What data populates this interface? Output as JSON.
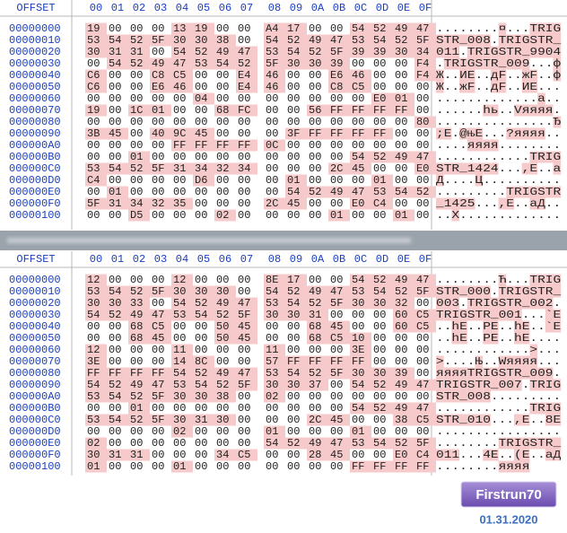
{
  "panels": [
    {
      "header": {
        "offset": "OFFSET",
        "columns": [
          "00",
          "01",
          "02",
          "03",
          "04",
          "05",
          "06",
          "07",
          "08",
          "09",
          "0A",
          "0B",
          "0C",
          "0D",
          "0E",
          "0F"
        ]
      },
      "rows": [
        {
          "offset": "00000000",
          "bytes": [
            "19",
            "00",
            "00",
            "00",
            "13",
            "19",
            "00",
            "00",
            "A4",
            "17",
            "00",
            "00",
            "54",
            "52",
            "49",
            "47"
          ],
          "ascii": "........¤...TRIG"
        },
        {
          "offset": "00000010",
          "bytes": [
            "53",
            "54",
            "52",
            "5F",
            "30",
            "30",
            "38",
            "00",
            "54",
            "52",
            "49",
            "47",
            "53",
            "54",
            "52",
            "5F"
          ],
          "ascii": "STR_008.TRIGSTR_"
        },
        {
          "offset": "00000020",
          "bytes": [
            "30",
            "31",
            "31",
            "00",
            "54",
            "52",
            "49",
            "47",
            "53",
            "54",
            "52",
            "5F",
            "39",
            "39",
            "30",
            "34"
          ],
          "ascii": "011.TRIGSTR_9904"
        },
        {
          "offset": "00000030",
          "bytes": [
            "00",
            "54",
            "52",
            "49",
            "47",
            "53",
            "54",
            "52",
            "5F",
            "30",
            "30",
            "39",
            "00",
            "00",
            "00",
            "F4"
          ],
          "ascii": ".TRIGSTR_009...ф"
        },
        {
          "offset": "00000040",
          "bytes": [
            "C6",
            "00",
            "00",
            "C8",
            "C5",
            "00",
            "00",
            "E4",
            "46",
            "00",
            "00",
            "E6",
            "46",
            "00",
            "00",
            "F4"
          ],
          "ascii": "Ж..ИЕ..дF..жF..ф"
        },
        {
          "offset": "00000050",
          "bytes": [
            "C6",
            "00",
            "00",
            "E6",
            "46",
            "00",
            "00",
            "E4",
            "46",
            "00",
            "00",
            "C8",
            "C5",
            "00",
            "00",
            "00"
          ],
          "ascii": "Ж..жF..дF..ИЕ..."
        },
        {
          "offset": "00000060",
          "bytes": [
            "00",
            "00",
            "00",
            "00",
            "00",
            "04",
            "00",
            "00",
            "00",
            "00",
            "00",
            "00",
            "00",
            "E0",
            "01",
            "00"
          ],
          "ascii": ".............а.."
        },
        {
          "offset": "00000070",
          "bytes": [
            "19",
            "00",
            "1C",
            "01",
            "00",
            "00",
            "68",
            "FC",
            "00",
            "00",
            "56",
            "FF",
            "FF",
            "FF",
            "FF",
            "00"
          ],
          "ascii": "......hь..Vяяяя."
        },
        {
          "offset": "00000080",
          "bytes": [
            "00",
            "00",
            "00",
            "00",
            "00",
            "00",
            "00",
            "00",
            "00",
            "00",
            "00",
            "00",
            "00",
            "00",
            "00",
            "80"
          ],
          "ascii": "...............Ђ"
        },
        {
          "offset": "00000090",
          "bytes": [
            "3B",
            "45",
            "00",
            "40",
            "9C",
            "45",
            "00",
            "00",
            "00",
            "3F",
            "FF",
            "FF",
            "FF",
            "FF",
            "00",
            "00"
          ],
          "ascii": ";E.@њE...?яяяя.."
        },
        {
          "offset": "000000A0",
          "bytes": [
            "00",
            "00",
            "00",
            "00",
            "FF",
            "FF",
            "FF",
            "FF",
            "0C",
            "00",
            "00",
            "00",
            "00",
            "00",
            "00",
            "00"
          ],
          "ascii": "....яяяя........"
        },
        {
          "offset": "000000B0",
          "bytes": [
            "00",
            "00",
            "01",
            "00",
            "00",
            "00",
            "00",
            "00",
            "00",
            "00",
            "00",
            "00",
            "54",
            "52",
            "49",
            "47"
          ],
          "ascii": "............TRIG"
        },
        {
          "offset": "000000C0",
          "bytes": [
            "53",
            "54",
            "52",
            "5F",
            "31",
            "34",
            "32",
            "34",
            "00",
            "00",
            "00",
            "2C",
            "45",
            "00",
            "00",
            "E0"
          ],
          "ascii": "STR_1424...,E..а"
        },
        {
          "offset": "000000D0",
          "bytes": [
            "C4",
            "00",
            "00",
            "00",
            "00",
            "D6",
            "00",
            "00",
            "00",
            "01",
            "00",
            "00",
            "00",
            "01",
            "00",
            "00"
          ],
          "ascii": "Д....Ц.........."
        },
        {
          "offset": "000000E0",
          "bytes": [
            "00",
            "01",
            "00",
            "00",
            "00",
            "00",
            "00",
            "00",
            "00",
            "54",
            "52",
            "49",
            "47",
            "53",
            "54",
            "52"
          ],
          "ascii": ".........TRIGSTR"
        },
        {
          "offset": "000000F0",
          "bytes": [
            "5F",
            "31",
            "34",
            "32",
            "35",
            "00",
            "00",
            "00",
            "2C",
            "45",
            "00",
            "00",
            "E0",
            "C4",
            "00",
            "00"
          ],
          "ascii": "_1425...,E..аД.."
        },
        {
          "offset": "00000100",
          "bytes": [
            "00",
            "00",
            "D5",
            "00",
            "00",
            "00",
            "02",
            "00",
            "00",
            "00",
            "00",
            "01",
            "00",
            "00",
            "01",
            "00"
          ],
          "ascii": "..Х............."
        }
      ]
    },
    {
      "header": {
        "offset": "OFFSET",
        "columns": [
          "00",
          "01",
          "02",
          "03",
          "04",
          "05",
          "06",
          "07",
          "08",
          "09",
          "0A",
          "0B",
          "0C",
          "0D",
          "0E",
          "0F"
        ]
      },
      "rows": [
        {
          "offset": "00000000",
          "bytes": [
            "12",
            "00",
            "00",
            "00",
            "12",
            "00",
            "00",
            "00",
            "8E",
            "17",
            "00",
            "00",
            "54",
            "52",
            "49",
            "47"
          ],
          "ascii": "........Ћ...TRIG"
        },
        {
          "offset": "00000010",
          "bytes": [
            "53",
            "54",
            "52",
            "5F",
            "30",
            "30",
            "30",
            "00",
            "54",
            "52",
            "49",
            "47",
            "53",
            "54",
            "52",
            "5F"
          ],
          "ascii": "STR_000.TRIGSTR_"
        },
        {
          "offset": "00000020",
          "bytes": [
            "30",
            "30",
            "33",
            "00",
            "54",
            "52",
            "49",
            "47",
            "53",
            "54",
            "52",
            "5F",
            "30",
            "30",
            "32",
            "00"
          ],
          "ascii": "003.TRIGSTR_002."
        },
        {
          "offset": "00000030",
          "bytes": [
            "54",
            "52",
            "49",
            "47",
            "53",
            "54",
            "52",
            "5F",
            "30",
            "30",
            "31",
            "00",
            "00",
            "00",
            "60",
            "C5"
          ],
          "ascii": "TRIGSTR_001...`Е"
        },
        {
          "offset": "00000040",
          "bytes": [
            "00",
            "00",
            "68",
            "C5",
            "00",
            "00",
            "50",
            "45",
            "00",
            "00",
            "68",
            "45",
            "00",
            "00",
            "60",
            "C5"
          ],
          "ascii": "..hЕ..PE..hE..`Е"
        },
        {
          "offset": "00000050",
          "bytes": [
            "00",
            "00",
            "68",
            "45",
            "00",
            "00",
            "50",
            "45",
            "00",
            "00",
            "68",
            "C5",
            "10",
            "00",
            "00",
            "00"
          ],
          "ascii": "..hE..PE..hЕ...."
        },
        {
          "offset": "00000060",
          "bytes": [
            "12",
            "00",
            "00",
            "00",
            "11",
            "00",
            "00",
            "00",
            "11",
            "00",
            "00",
            "00",
            "3E",
            "00",
            "00",
            "00"
          ],
          "ascii": "............>..."
        },
        {
          "offset": "00000070",
          "bytes": [
            "3E",
            "00",
            "00",
            "00",
            "14",
            "8C",
            "00",
            "00",
            "57",
            "FF",
            "FF",
            "FF",
            "FF",
            "00",
            "00",
            "00"
          ],
          "ascii": ">....Њ..Wяяяя..."
        },
        {
          "offset": "00000080",
          "bytes": [
            "FF",
            "FF",
            "FF",
            "FF",
            "54",
            "52",
            "49",
            "47",
            "53",
            "54",
            "52",
            "5F",
            "30",
            "30",
            "39",
            "00"
          ],
          "ascii": "яяяяTRIGSTR_009."
        },
        {
          "offset": "00000090",
          "bytes": [
            "54",
            "52",
            "49",
            "47",
            "53",
            "54",
            "52",
            "5F",
            "30",
            "30",
            "37",
            "00",
            "54",
            "52",
            "49",
            "47"
          ],
          "ascii": "TRIGSTR_007.TRIG"
        },
        {
          "offset": "000000A0",
          "bytes": [
            "53",
            "54",
            "52",
            "5F",
            "30",
            "30",
            "38",
            "00",
            "02",
            "00",
            "00",
            "00",
            "00",
            "00",
            "00",
            "00"
          ],
          "ascii": "STR_008........."
        },
        {
          "offset": "000000B0",
          "bytes": [
            "00",
            "00",
            "01",
            "00",
            "00",
            "00",
            "00",
            "00",
            "00",
            "00",
            "00",
            "00",
            "54",
            "52",
            "49",
            "47"
          ],
          "ascii": "............TRIG"
        },
        {
          "offset": "000000C0",
          "bytes": [
            "53",
            "54",
            "52",
            "5F",
            "30",
            "31",
            "30",
            "00",
            "00",
            "00",
            "2C",
            "45",
            "00",
            "00",
            "38",
            "C5"
          ],
          "ascii": "STR_010...,E..8Е"
        },
        {
          "offset": "000000D0",
          "bytes": [
            "00",
            "00",
            "00",
            "00",
            "02",
            "00",
            "00",
            "00",
            "01",
            "00",
            "00",
            "00",
            "01",
            "00",
            "00",
            "00"
          ],
          "ascii": "................"
        },
        {
          "offset": "000000E0",
          "bytes": [
            "02",
            "00",
            "00",
            "00",
            "00",
            "00",
            "00",
            "00",
            "54",
            "52",
            "49",
            "47",
            "53",
            "54",
            "52",
            "5F"
          ],
          "ascii": "........TRIGSTR_"
        },
        {
          "offset": "000000F0",
          "bytes": [
            "30",
            "31",
            "31",
            "00",
            "00",
            "00",
            "34",
            "C5",
            "00",
            "00",
            "28",
            "45",
            "00",
            "00",
            "E0",
            "C4"
          ],
          "ascii": "011...4Е..(E..аД"
        },
        {
          "offset": "00000100",
          "bytes": [
            "01",
            "00",
            "00",
            "00",
            "01",
            "00",
            "00",
            "00",
            "00",
            "00",
            "00",
            "00",
            "FF",
            "FF",
            "FF",
            "FF"
          ],
          "ascii": "........яяяя"
        }
      ]
    }
  ],
  "badge": "Firstrun70",
  "date": "01.31.2020"
}
